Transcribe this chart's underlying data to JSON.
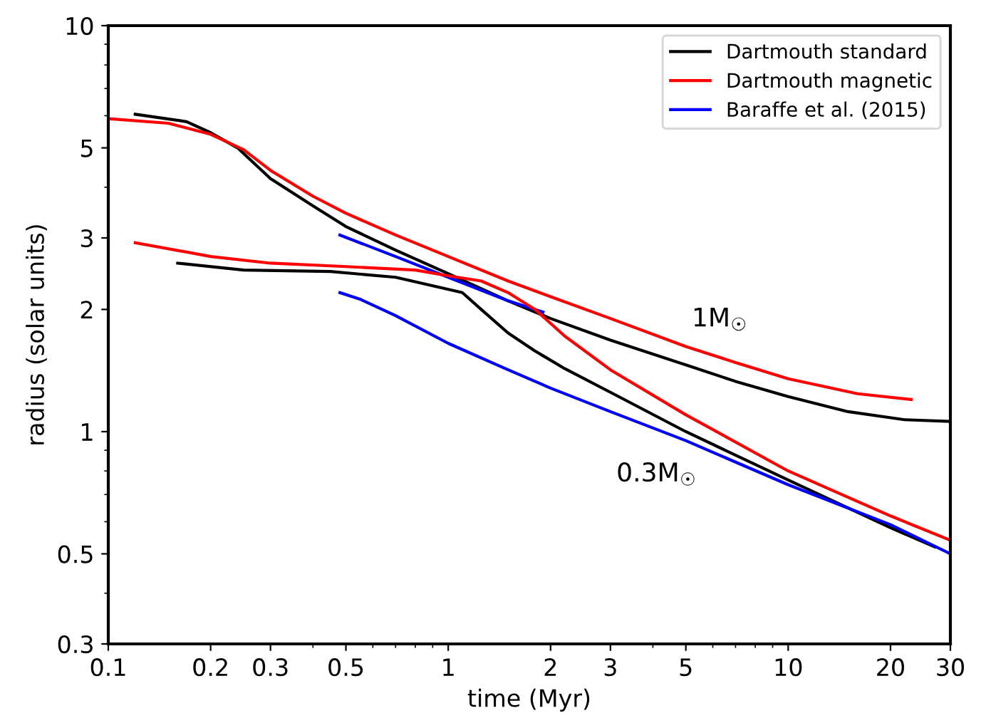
{
  "chart_data": {
    "type": "line",
    "xlabel": "time (Myr)",
    "ylabel": "radius (solar units)",
    "log": "xy",
    "xlim": [
      0.1,
      30
    ],
    "ylim": [
      0.3,
      10
    ],
    "xticks": [
      0.1,
      0.2,
      0.3,
      0.5,
      1,
      2,
      3,
      5,
      10,
      20,
      30
    ],
    "yticks": [
      0.3,
      0.5,
      1,
      2,
      3,
      5,
      10
    ],
    "grid": false,
    "legend": "top right",
    "marker": "none",
    "line_style": "solid",
    "series": [
      {
        "name": "Dartmouth standard",
        "color": "#000000",
        "x": [
          0.12,
          0.17,
          0.2,
          0.24,
          0.3,
          0.4,
          0.5,
          0.7,
          1,
          1.5,
          2,
          3,
          5,
          7,
          10,
          15,
          22,
          30
        ],
        "values": [
          6.05,
          5.8,
          5.45,
          5.0,
          4.2,
          3.6,
          3.2,
          2.8,
          2.45,
          2.1,
          1.9,
          1.68,
          1.46,
          1.33,
          1.22,
          1.12,
          1.07,
          1.06
        ]
      },
      {
        "name": "Dartmouth magnetic",
        "color": "#ff0000",
        "x": [
          0.1,
          0.15,
          0.2,
          0.25,
          0.3,
          0.4,
          0.5,
          0.7,
          1,
          1.5,
          2,
          3,
          5,
          7,
          10,
          16,
          23
        ],
        "values": [
          5.9,
          5.75,
          5.4,
          4.95,
          4.4,
          3.8,
          3.45,
          3.05,
          2.7,
          2.35,
          2.15,
          1.9,
          1.62,
          1.48,
          1.35,
          1.24,
          1.2
        ]
      },
      {
        "name": "Baraffe et al. (2015)",
        "color": "#0000ff",
        "x": [
          0.48,
          0.7,
          1,
          1.5,
          1.9
        ],
        "values": [
          3.05,
          2.7,
          2.4,
          2.1,
          1.97
        ]
      },
      {
        "color": "#000000",
        "x": [
          0.16,
          0.25,
          0.45,
          0.7,
          1.1,
          1.25,
          1.5,
          1.8,
          2.2,
          3,
          5,
          10,
          20,
          27
        ],
        "values": [
          2.6,
          2.5,
          2.48,
          2.4,
          2.2,
          2.0,
          1.75,
          1.58,
          1.43,
          1.25,
          1.0,
          0.76,
          0.58,
          0.52
        ]
      },
      {
        "color": "#ff0000",
        "x": [
          0.12,
          0.2,
          0.3,
          0.5,
          0.8,
          1,
          1.25,
          1.5,
          1.8,
          2.2,
          3,
          5,
          10,
          20,
          30
        ],
        "values": [
          2.92,
          2.7,
          2.6,
          2.55,
          2.5,
          2.42,
          2.35,
          2.2,
          2.0,
          1.72,
          1.42,
          1.1,
          0.8,
          0.62,
          0.54
        ]
      },
      {
        "color": "#0000ff",
        "x": [
          0.48,
          0.55,
          0.7,
          1,
          1.5,
          2,
          3,
          5,
          10,
          20,
          30
        ],
        "values": [
          2.2,
          2.12,
          1.93,
          1.65,
          1.42,
          1.28,
          1.12,
          0.95,
          0.74,
          0.59,
          0.5
        ]
      }
    ],
    "annotations": [
      "1M$_{☉}$",
      "0.3M$_{☉}$"
    ]
  }
}
